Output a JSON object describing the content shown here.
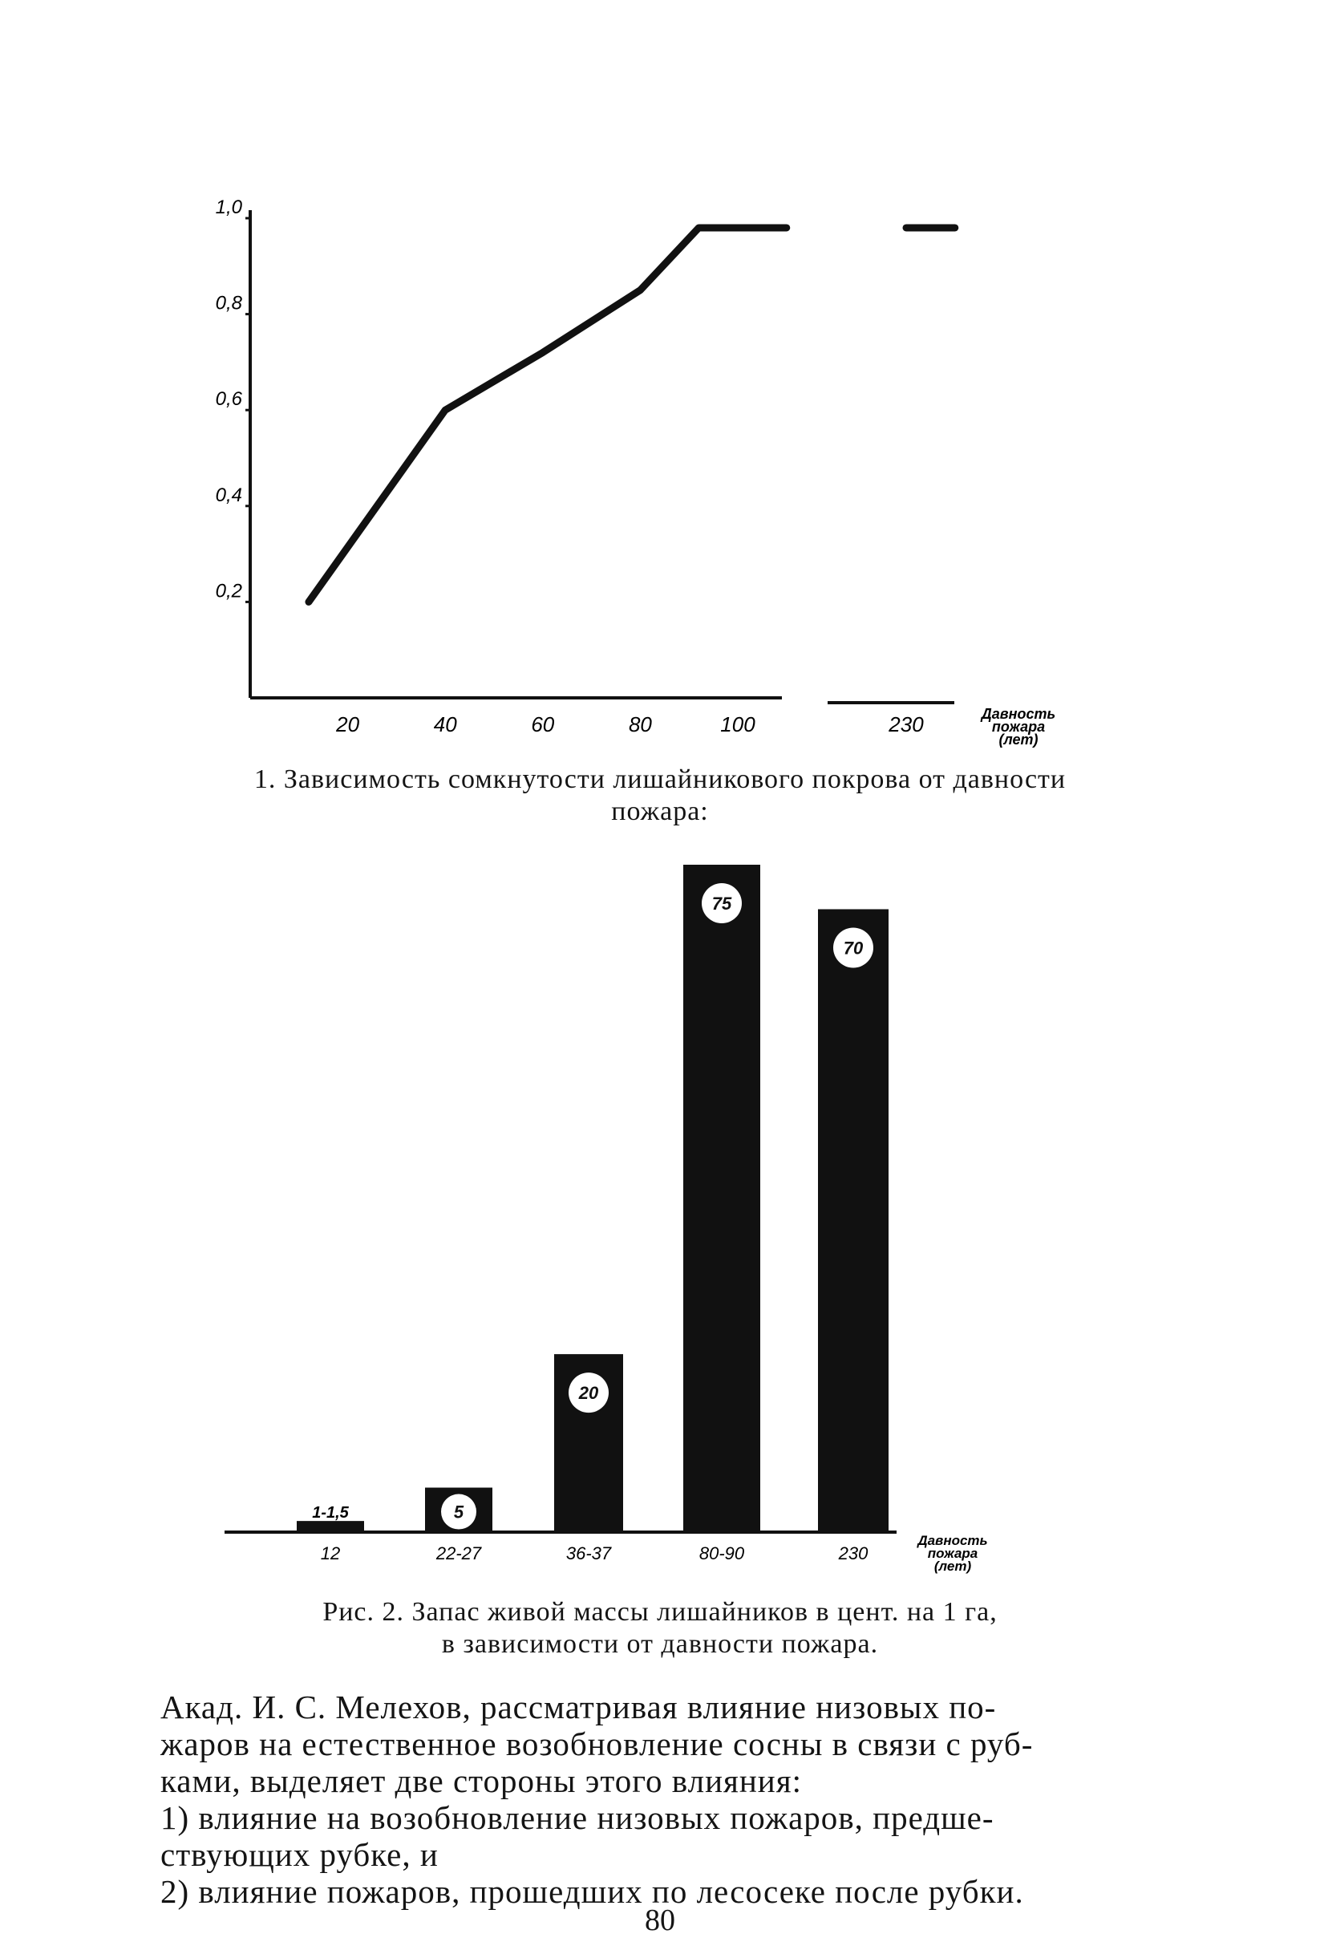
{
  "chart_data": [
    {
      "type": "line",
      "x_tick_labels": [
        "20",
        "40",
        "60",
        "80",
        "100",
        "230"
      ],
      "y_tick_labels": [
        "1,0",
        "0,8",
        "0,6",
        "0,4",
        "0,2"
      ],
      "x_unit_label": [
        "Давность",
        "пожара",
        "(лет)"
      ],
      "ylim": [
        0,
        1.0
      ],
      "series": [
        {
          "x": [
            12,
            40,
            60,
            80,
            92,
            110
          ],
          "y": [
            0.2,
            0.6,
            0.72,
            0.85,
            0.98,
            0.98
          ]
        },
        {
          "x": [
            230,
            240
          ],
          "y": [
            0.98,
            0.98
          ]
        }
      ],
      "caption": "1. Зависимость сомкнутости лишайникового покрова от давности пожара:"
    },
    {
      "type": "bar",
      "categories": [
        "12",
        "22-27",
        "36-37",
        "80-90",
        "230"
      ],
      "values": [
        1.25,
        5,
        20,
        75,
        70
      ],
      "data_labels": [
        "1-1,5",
        "5",
        "20",
        "75",
        "70"
      ],
      "x_unit_label": [
        "Давность",
        "пожара",
        "(лет)"
      ],
      "ylim": [
        0,
        75
      ],
      "caption": "Рис. 2. Запас живой массы лишайников в цент. на 1 га, в зависимости от давности пожара."
    }
  ],
  "fig1_caption_line1": "1. Зависимость сомкнутости лишайникового покрова от давности",
  "fig1_caption_line2": "пожара:",
  "fig2_caption_line1": "Рис. 2. Запас живой массы лишайников в цент. на 1 га,",
  "fig2_caption_line2": "в зависимости от давности пожара.",
  "body": {
    "line1": "Акад. И. С. Мелехов, рассматривая влияние низовых по-",
    "line2": "жаров на естественное возобновление сосны в связи с руб-",
    "line3": "ками, выделяет две стороны этого влияния:",
    "line4": "1) влияние на возобновление низовых пожаров, предше-",
    "line5": "ствующих рубке, и",
    "line6": "2) влияние пожаров, прошедших по лесосеке после рубки."
  },
  "page_number": "80"
}
